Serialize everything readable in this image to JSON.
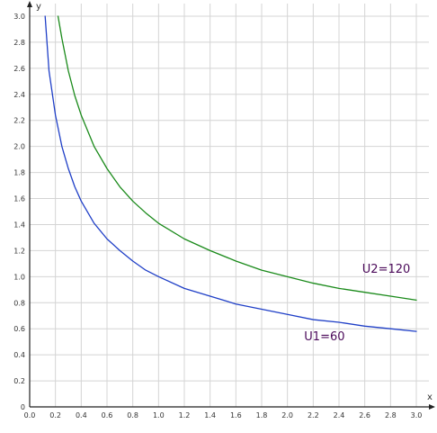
{
  "chart_data": {
    "type": "line",
    "title": "",
    "xlabel": "x",
    "ylabel": "y",
    "xlim": [
      0,
      3
    ],
    "ylim": [
      0,
      3
    ],
    "grid": true,
    "x_ticks": [
      "0.0",
      "0.2",
      "0.4",
      "0.6",
      "0.8",
      "1.0",
      "1.2",
      "1.4",
      "1.6",
      "1.8",
      "2.0",
      "2.2",
      "2.4",
      "2.6",
      "2.8",
      "3.0"
    ],
    "y_ticks": [
      "0",
      "0.2",
      "0.4",
      "0.6",
      "0.8",
      "1.0",
      "1.2",
      "1.4",
      "1.6",
      "1.8",
      "2.0",
      "2.2",
      "2.4",
      "2.6",
      "2.8",
      "3.0"
    ],
    "series": [
      {
        "name": "U1=60",
        "color": "#1f3fc7",
        "x": [
          0.12,
          0.15,
          0.2,
          0.25,
          0.3,
          0.35,
          0.4,
          0.5,
          0.6,
          0.7,
          0.8,
          0.9,
          1.0,
          1.2,
          1.4,
          1.6,
          1.8,
          2.0,
          2.2,
          2.4,
          2.6,
          2.8,
          3.0
        ],
        "y": [
          3.0,
          2.58,
          2.24,
          2.0,
          1.83,
          1.69,
          1.58,
          1.41,
          1.29,
          1.2,
          1.12,
          1.05,
          1.0,
          0.91,
          0.85,
          0.79,
          0.75,
          0.71,
          0.67,
          0.65,
          0.62,
          0.6,
          0.58
        ]
      },
      {
        "name": "U2=120",
        "color": "#1a8a1a",
        "x": [
          0.22,
          0.25,
          0.3,
          0.35,
          0.4,
          0.5,
          0.6,
          0.7,
          0.8,
          0.9,
          1.0,
          1.2,
          1.4,
          1.6,
          1.8,
          2.0,
          2.2,
          2.4,
          2.6,
          2.8,
          3.0
        ],
        "y": [
          3.0,
          2.83,
          2.58,
          2.39,
          2.24,
          2.0,
          1.83,
          1.69,
          1.58,
          1.49,
          1.41,
          1.29,
          1.2,
          1.12,
          1.05,
          1.0,
          0.95,
          0.91,
          0.88,
          0.85,
          0.82
        ]
      }
    ],
    "annotations": [
      {
        "text": "U2=120",
        "x": 2.58,
        "y": 1.03
      },
      {
        "text": "U1=60",
        "x": 2.13,
        "y": 0.51
      }
    ]
  }
}
